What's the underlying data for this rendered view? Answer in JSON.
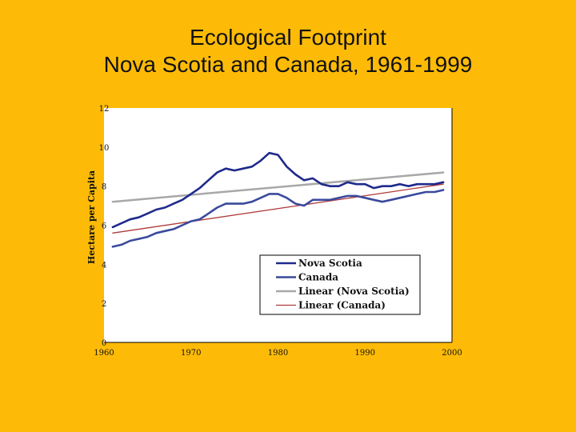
{
  "chart_data": {
    "type": "line",
    "title": "Ecological Footprint",
    "subtitle": "Nova Scotia and Canada, 1961-1999",
    "xlabel": "",
    "ylabel": "Hectare per Capita",
    "xlim": [
      1960,
      2000
    ],
    "ylim": [
      0,
      12
    ],
    "x_ticks": [
      1960,
      1970,
      1980,
      1990,
      2000
    ],
    "x_tick_labels": [
      "1960",
      "1970",
      "1980",
      "1990",
      "2000"
    ],
    "y_ticks": [
      0,
      2,
      4,
      6,
      8,
      10,
      12
    ],
    "y_tick_labels": [
      "0",
      "2",
      "4",
      "6",
      "8",
      "10",
      "12"
    ],
    "legend_position": "bottom-right",
    "grid": false,
    "series": [
      {
        "name": "Nova Scotia",
        "color": "#1F2A8C",
        "x": [
          1961,
          1962,
          1963,
          1964,
          1965,
          1966,
          1967,
          1968,
          1969,
          1970,
          1971,
          1972,
          1973,
          1974,
          1975,
          1976,
          1977,
          1978,
          1979,
          1980,
          1981,
          1982,
          1983,
          1984,
          1985,
          1986,
          1987,
          1988,
          1989,
          1990,
          1991,
          1992,
          1993,
          1994,
          1995,
          1996,
          1997,
          1998,
          1999
        ],
        "y": [
          5.9,
          6.1,
          6.3,
          6.4,
          6.6,
          6.8,
          6.9,
          7.1,
          7.3,
          7.6,
          7.9,
          8.3,
          8.7,
          8.9,
          8.8,
          8.9,
          9.0,
          9.3,
          9.7,
          9.6,
          9.0,
          8.6,
          8.3,
          8.4,
          8.1,
          8.0,
          8.0,
          8.2,
          8.1,
          8.1,
          7.9,
          8.0,
          8.0,
          8.1,
          8.0,
          8.1,
          8.1,
          8.1,
          8.2
        ]
      },
      {
        "name": "Canada",
        "color": "#3A4A9C",
        "x": [
          1961,
          1962,
          1963,
          1964,
          1965,
          1966,
          1967,
          1968,
          1969,
          1970,
          1971,
          1972,
          1973,
          1974,
          1975,
          1976,
          1977,
          1978,
          1979,
          1980,
          1981,
          1982,
          1983,
          1984,
          1985,
          1986,
          1987,
          1988,
          1989,
          1990,
          1991,
          1992,
          1993,
          1994,
          1995,
          1996,
          1997,
          1998,
          1999
        ],
        "y": [
          4.9,
          5.0,
          5.2,
          5.3,
          5.4,
          5.6,
          5.7,
          5.8,
          6.0,
          6.2,
          6.3,
          6.6,
          6.9,
          7.1,
          7.1,
          7.1,
          7.2,
          7.4,
          7.6,
          7.6,
          7.4,
          7.1,
          7.0,
          7.3,
          7.3,
          7.3,
          7.4,
          7.5,
          7.5,
          7.4,
          7.3,
          7.2,
          7.3,
          7.4,
          7.5,
          7.6,
          7.7,
          7.7,
          7.8
        ]
      },
      {
        "name": "Linear (Nova Scotia)",
        "color": "#A8A8A8",
        "style": "trendline",
        "x": [
          1961,
          1999
        ],
        "y": [
          7.2,
          8.7
        ]
      },
      {
        "name": "Linear (Canada)",
        "color": "#B03A3A",
        "style": "trendline",
        "x": [
          1961,
          1999
        ],
        "y": [
          5.6,
          8.1
        ]
      }
    ]
  }
}
